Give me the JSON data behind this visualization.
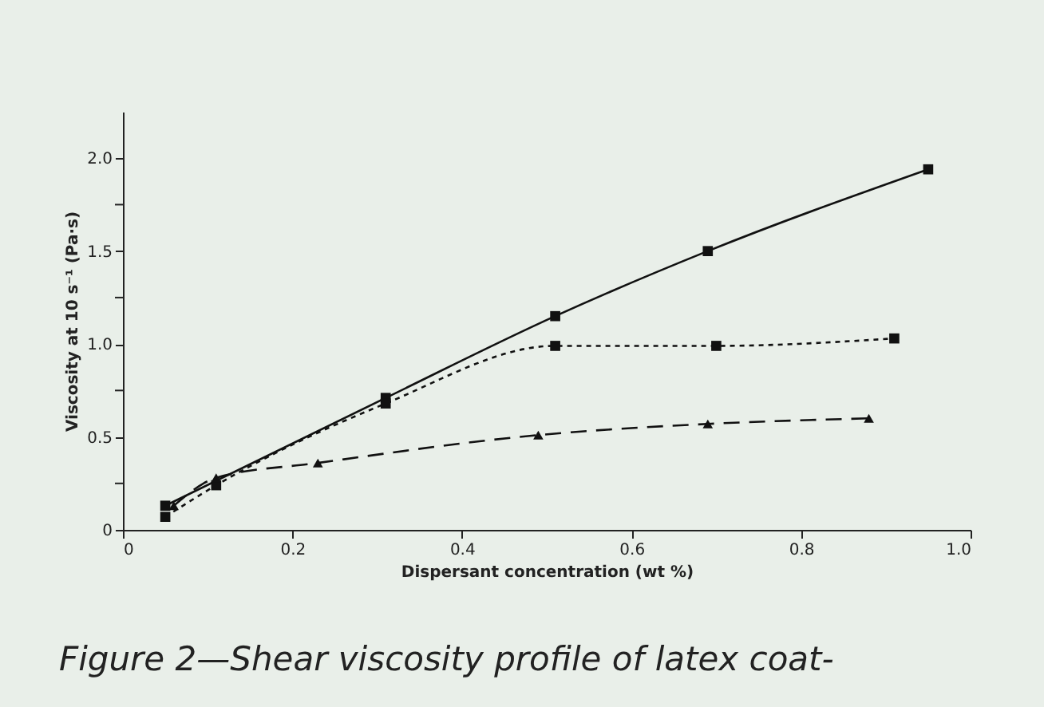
{
  "chart_data": {
    "type": "line",
    "xlabel": "Dispersant concentration (wt %)",
    "ylabel": "Viscosity at 10 s⁻¹ (Pa·s)",
    "xlim": [
      0,
      1.0
    ],
    "xticks": [
      0,
      0.2,
      0.4,
      0.6,
      0.8,
      {
        "value": 1,
        "label": "1.0"
      }
    ],
    "ylim": [
      0,
      2.25
    ],
    "yticks": [
      0,
      {
        "value": 0.25,
        "label": null
      },
      0.5,
      {
        "value": 0.75,
        "label": null
      },
      {
        "value": 1,
        "label": "1.0"
      },
      {
        "value": 1.25,
        "label": null
      },
      1.5,
      {
        "value": 1.75,
        "label": null
      },
      {
        "value": 2,
        "label": "2.0"
      }
    ],
    "grid": false,
    "series": [
      {
        "color": "#111111",
        "marker": "square",
        "line_style": "solid",
        "x": [
          0.05,
          0.31,
          0.51,
          0.69,
          0.95
        ],
        "values": [
          0.13,
          0.71,
          1.15,
          1.5,
          1.94
        ]
      },
      {
        "color": "#111111",
        "marker": "square",
        "line_style": "dotted",
        "x": [
          0.05,
          0.11,
          0.31,
          0.51,
          0.7,
          0.91
        ],
        "values": [
          0.07,
          0.24,
          0.68,
          0.99,
          0.99,
          1.03
        ]
      },
      {
        "color": "#111111",
        "marker": "triangle",
        "line_style": "dashed",
        "x": [
          0.06,
          0.11,
          0.23,
          0.49,
          0.69,
          0.88
        ],
        "values": [
          0.13,
          0.28,
          0.36,
          0.51,
          0.57,
          0.6
        ]
      }
    ],
    "annotations": [
      "Figure 2—Shear viscosity profile of latex coat-"
    ]
  }
}
